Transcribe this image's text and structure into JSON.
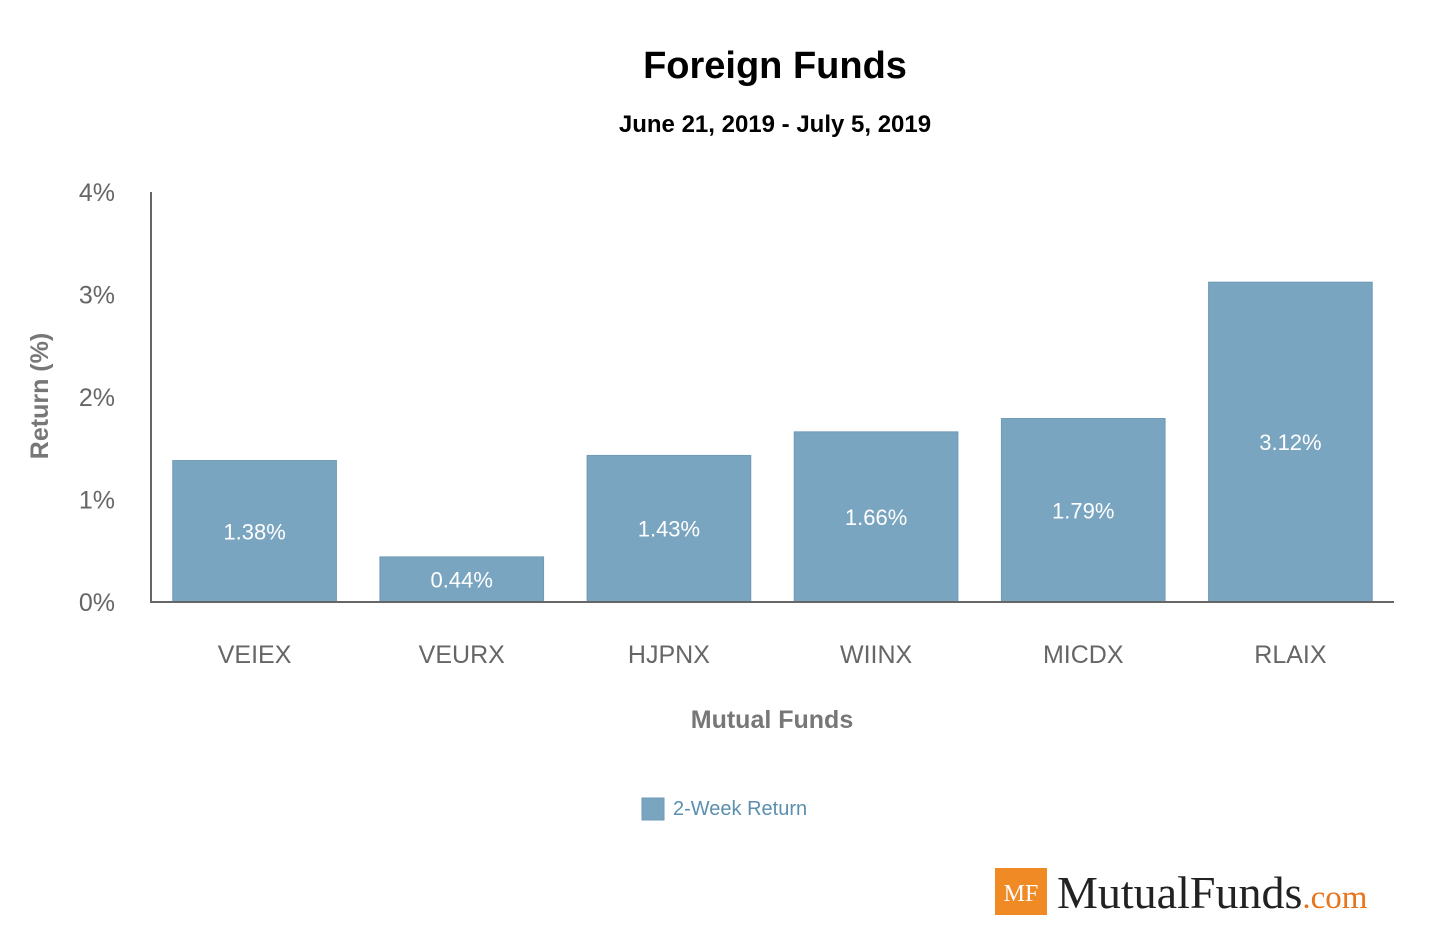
{
  "chart_data": {
    "type": "bar",
    "title": "Foreign Funds",
    "subtitle": "June 21, 2019 - July 5, 2019",
    "xlabel": "Mutual Funds",
    "ylabel": "Return (%)",
    "ylim": [
      0,
      4
    ],
    "yticks": [
      "0%",
      "1%",
      "2%",
      "3%",
      "4%"
    ],
    "categories": [
      "VEIEX",
      "VEURX",
      "HJPNX",
      "WIINX",
      "MICDX",
      "RLAIX"
    ],
    "series": [
      {
        "name": "2-Week Return",
        "values": [
          1.38,
          0.44,
          1.43,
          1.66,
          1.79,
          3.12
        ],
        "labels": [
          "1.38%",
          "0.44%",
          "1.43%",
          "1.66%",
          "1.79%",
          "3.12%"
        ],
        "color": "#7aa5c0"
      }
    ],
    "grid": false,
    "legend_position": "bottom-center"
  },
  "brand": {
    "mark": "MF",
    "name": "MutualFunds",
    "suffix": ".com",
    "mark_color": "#f08a24",
    "name_color": "#222222",
    "suffix_color": "#e8741c"
  }
}
